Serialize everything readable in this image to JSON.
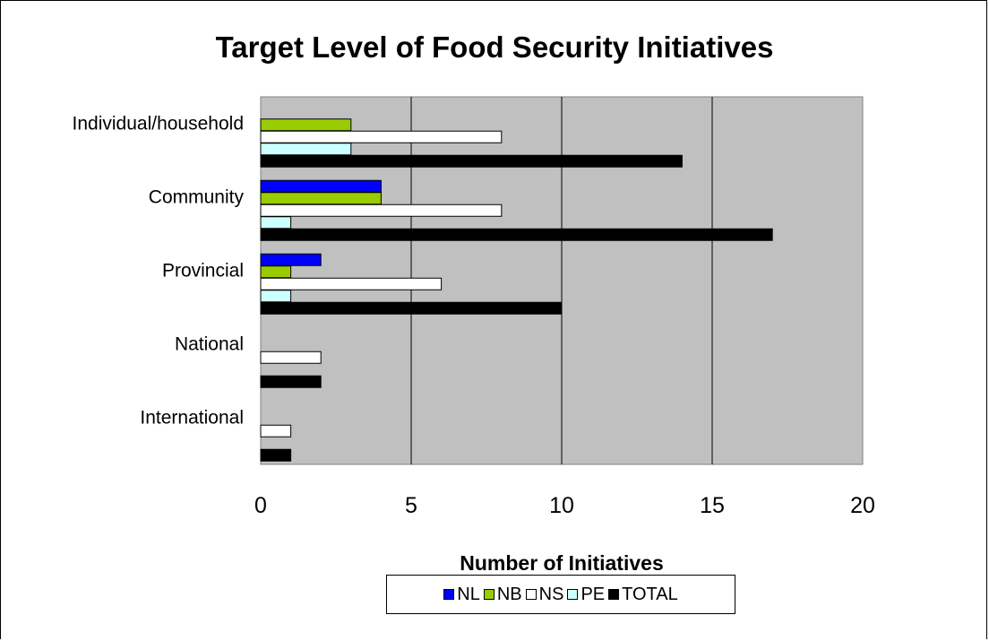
{
  "chart_data": {
    "type": "bar",
    "orientation": "horizontal",
    "title": "Target Level of Food Security Initiatives",
    "xlabel": "Number of  Initiatives",
    "ylabel": "",
    "categories": [
      "Individual/household",
      "Community",
      "Provincial",
      "National",
      "International"
    ],
    "series": [
      {
        "name": "NL",
        "color": "#0000FF",
        "values": [
          0,
          4,
          2,
          0,
          0
        ]
      },
      {
        "name": "NB",
        "color": "#99CC00",
        "values": [
          3,
          4,
          1,
          0,
          0
        ]
      },
      {
        "name": "NS",
        "color": "#FFFFFF",
        "values": [
          8,
          8,
          6,
          2,
          1
        ]
      },
      {
        "name": "PE",
        "color": "#CCFFFF",
        "values": [
          3,
          1,
          1,
          0,
          0
        ]
      },
      {
        "name": "TOTAL",
        "color": "#000000",
        "values": [
          14,
          17,
          10,
          2,
          1
        ]
      }
    ],
    "xlim": [
      0,
      20
    ],
    "x_ticks": [
      0,
      5,
      10,
      15,
      20
    ],
    "grid": true,
    "plot_background": "#C0C0C0",
    "legend_position": "bottom"
  }
}
